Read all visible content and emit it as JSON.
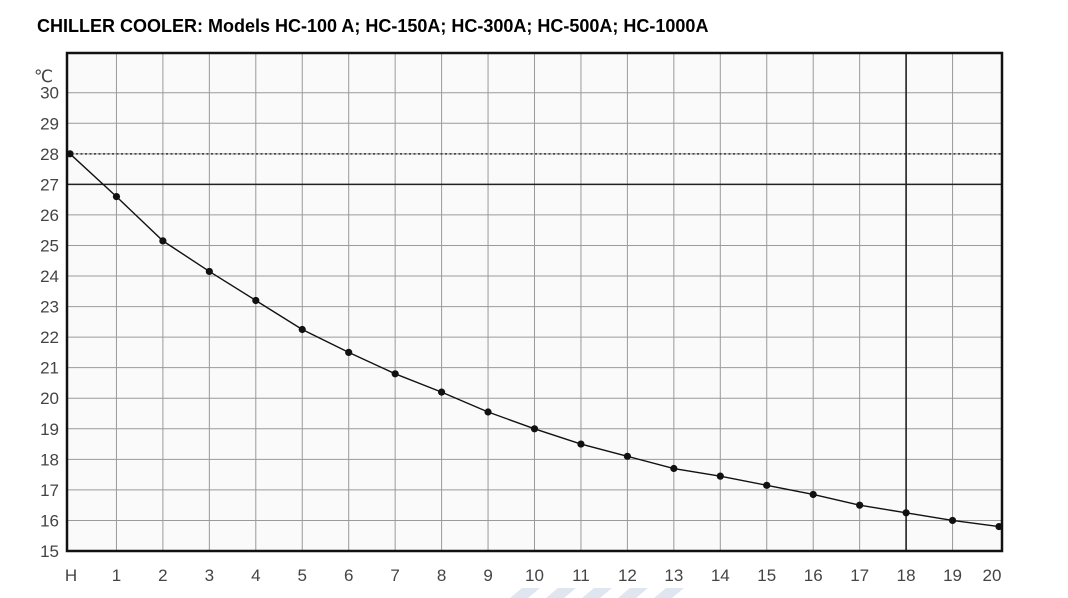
{
  "header": {
    "title": "CHILLER COOLER: Models HC-100 A; HC-150A; HC-300A; HC-500A; HC-1000A"
  },
  "chart_data": {
    "type": "line",
    "title": "CHILLER COOLER: Models HC-100 A; HC-150A; HC-300A; HC-500A; HC-1000A",
    "xlabel": "H",
    "ylabel": "℃",
    "x": [
      0,
      1,
      2,
      3,
      4,
      5,
      6,
      7,
      8,
      9,
      10,
      11,
      12,
      13,
      14,
      15,
      16,
      17,
      18,
      19,
      20
    ],
    "x_tick_labels": [
      "H",
      "1",
      "2",
      "3",
      "4",
      "5",
      "6",
      "7",
      "8",
      "9",
      "10",
      "11",
      "12",
      "13",
      "14",
      "15",
      "16",
      "17",
      "18",
      "19",
      "20"
    ],
    "y_ticks": [
      15,
      16,
      17,
      18,
      19,
      20,
      21,
      22,
      23,
      24,
      25,
      26,
      27,
      28,
      29,
      30
    ],
    "xlim": [
      0,
      20
    ],
    "ylim": [
      15,
      31.3
    ],
    "grid": true,
    "series": [
      {
        "values": [
          28.0,
          26.6,
          25.15,
          24.15,
          23.2,
          22.25,
          21.5,
          20.8,
          20.2,
          19.55,
          19.0,
          18.5,
          18.1,
          17.7,
          17.45,
          17.15,
          16.85,
          16.5,
          16.25,
          16.0,
          15.8
        ]
      }
    ],
    "reference_lines": [
      {
        "y": 28,
        "style": "dotted"
      },
      {
        "y": 27,
        "style": "solid"
      },
      {
        "x": 18,
        "style": "solid"
      }
    ],
    "colors": {
      "line": "#111111",
      "grid": "#9a9a9a",
      "frame": "#111111"
    }
  }
}
